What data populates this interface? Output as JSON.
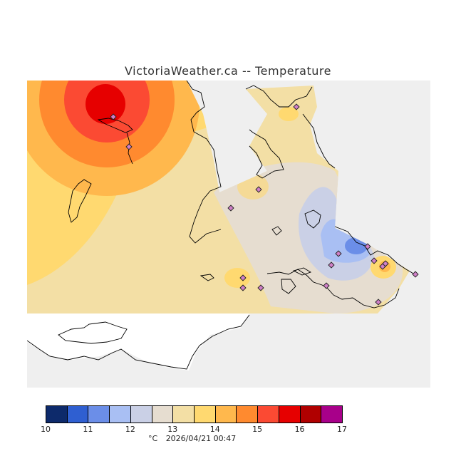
{
  "header": {
    "title": "VictoriaWeather.ca -- Temperature"
  },
  "legend": {
    "unit": "°C",
    "timestamp": "2026/04/21 00:47",
    "ticks": [
      "10",
      "11",
      "12",
      "13",
      "14",
      "15",
      "16",
      "17"
    ],
    "colors": [
      "#0d2a6b",
      "#2f5fd1",
      "#6b8ee8",
      "#a9bff3",
      "#cad0e6",
      "#e6ddd0",
      "#f3dfa5",
      "#ffd970",
      "#ffb84d",
      "#ff8a2f",
      "#fb4a33",
      "#e60000",
      "#b00000",
      "#a8008a"
    ]
  },
  "map": {
    "stations": [
      "station-1",
      "station-2",
      "station-3",
      "station-4",
      "station-5",
      "station-6",
      "station-7",
      "station-8",
      "station-9",
      "station-10",
      "station-11",
      "station-12",
      "station-13",
      "station-14",
      "station-15",
      "station-16",
      "station-17"
    ]
  }
}
